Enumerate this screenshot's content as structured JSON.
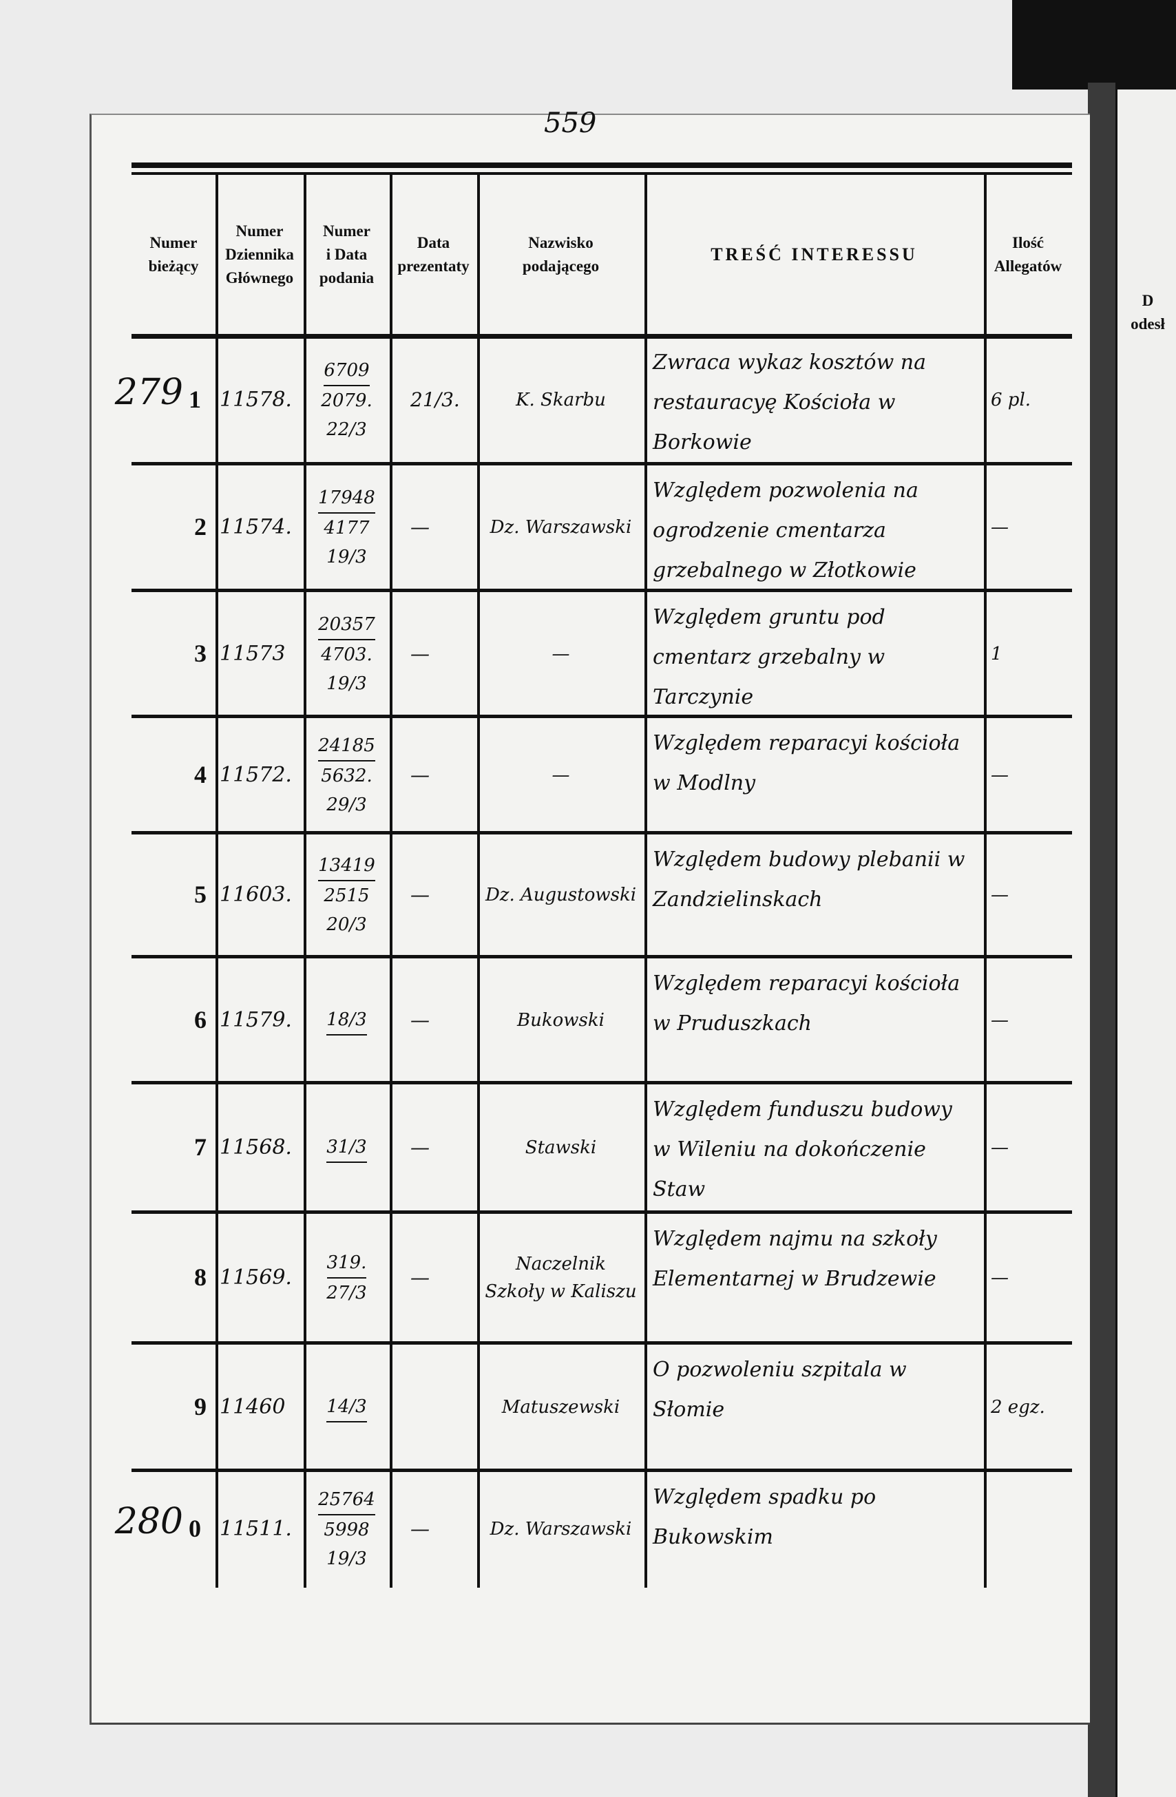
{
  "page_number": "559",
  "headers": {
    "col1": [
      "Numer",
      "bieżący"
    ],
    "col2": [
      "Numer",
      "Dziennika",
      "Głównego"
    ],
    "col3": [
      "Numer",
      "i Data",
      "podania"
    ],
    "col4": [
      "Data",
      "prezentaty"
    ],
    "col5": [
      "Nazwisko",
      "podającego"
    ],
    "col6": "TREŚĆ INTERESSU",
    "col7": [
      "Ilość",
      "Allegatów"
    ]
  },
  "next_page_header": [
    "D",
    "odesł"
  ],
  "rows": [
    {
      "margin": "279",
      "num": "1",
      "dziennik": "11578.",
      "podanie": [
        "6709",
        "2079.",
        "22/3"
      ],
      "prezentata": "21/3.",
      "nazwisko": "K. Skarbu",
      "tresc": "Zwraca wykaz kosztów na restauracyę Kościoła w Borkowie",
      "allegaty": "6 pl."
    },
    {
      "margin": "",
      "num": "2",
      "dziennik": "11574.",
      "podanie": [
        "17948",
        "4177",
        "19/3"
      ],
      "prezentata": "—",
      "nazwisko": "Dz. Warszawski",
      "tresc": "Względem pozwolenia na ogrodzenie cmentarza grzebalnego w Złotkowie",
      "allegaty": "—"
    },
    {
      "margin": "",
      "num": "3",
      "dziennik": "11573",
      "podanie": [
        "20357",
        "4703.",
        "19/3"
      ],
      "prezentata": "—",
      "nazwisko": "—",
      "tresc": "Względem gruntu pod cmentarz grzebalny w Tarczynie",
      "allegaty": "1"
    },
    {
      "margin": "",
      "num": "4",
      "dziennik": "11572.",
      "podanie": [
        "24185",
        "5632.",
        "29/3"
      ],
      "prezentata": "—",
      "nazwisko": "—",
      "tresc": "Względem reparacyi kościoła w Modlny",
      "allegaty": "—"
    },
    {
      "margin": "",
      "num": "5",
      "dziennik": "11603.",
      "podanie": [
        "13419",
        "2515",
        "20/3"
      ],
      "prezentata": "—",
      "nazwisko": "Dz. Augustowski",
      "tresc": "Względem budowy plebanii w Zandzielinskach",
      "allegaty": "—"
    },
    {
      "margin": "",
      "num": "6",
      "dziennik": "11579.",
      "podanie": [
        "18/3"
      ],
      "prezentata": "—",
      "nazwisko": "Bukowski",
      "tresc": "Względem reparacyi kościoła w Pruduszkach",
      "allegaty": "—"
    },
    {
      "margin": "",
      "num": "7",
      "dziennik": "11568.",
      "podanie": [
        "31/3"
      ],
      "prezentata": "—",
      "nazwisko": "Stawski",
      "tresc": "Względem funduszu budowy w Wileniu na dokończenie Staw",
      "allegaty": "—"
    },
    {
      "margin": "",
      "num": "8",
      "dziennik": "11569.",
      "podanie": [
        "319.",
        "27/3"
      ],
      "prezentata": "—",
      "nazwisko": "Naczelnik Szkoły w Kaliszu",
      "tresc": "Względem najmu na szkoły Elementarnej w Brudzewie",
      "allegaty": "—"
    },
    {
      "margin": "",
      "num": "9",
      "dziennik": "11460",
      "podanie": [
        "14/3"
      ],
      "prezentata": "",
      "nazwisko": "Matuszewski",
      "tresc": "O pozwoleniu szpitala w Słomie",
      "allegaty": "2 egz."
    },
    {
      "margin": "280",
      "num": "0",
      "dziennik": "11511.",
      "podanie": [
        "25764",
        "5998",
        "19/3"
      ],
      "prezentata": "—",
      "nazwisko": "Dz. Warszawski",
      "tresc": "Względem spadku po Bukowskim",
      "allegaty": ""
    }
  ]
}
